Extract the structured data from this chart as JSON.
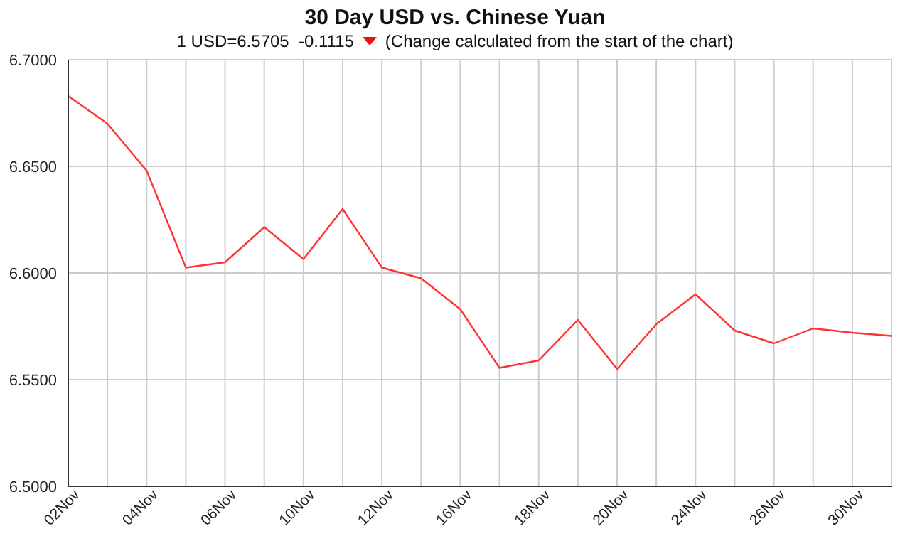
{
  "chart_data": {
    "type": "line",
    "title": "30 Day USD vs. Chinese Yuan",
    "subtitle": "1 USD=6.5705  -0.1115",
    "annotations": [
      "(Change calculated from the start of the chart)"
    ],
    "categories": [
      "02Nov",
      null,
      "04Nov",
      null,
      "06Nov",
      null,
      "10Nov",
      null,
      "12Nov",
      null,
      "16Nov",
      null,
      "18Nov",
      null,
      "20Nov",
      null,
      "24Nov",
      null,
      "26Nov",
      null,
      "30Nov",
      null
    ],
    "series": [
      {
        "color": "#ff3333",
        "values": [
          6.683,
          6.67,
          6.648,
          6.6025,
          6.605,
          6.6215,
          6.6065,
          6.63,
          6.6025,
          6.5975,
          6.583,
          6.5555,
          6.559,
          6.578,
          6.555,
          6.576,
          6.59,
          6.573,
          6.567,
          6.574,
          6.572,
          6.5705
        ]
      }
    ],
    "ylim": [
      6.5,
      6.7
    ],
    "yticks": [
      {
        "value": 6.5,
        "label": "6.5000"
      },
      {
        "value": 6.55,
        "label": "6.5500"
      },
      {
        "value": 6.6,
        "label": "6.6000"
      },
      {
        "value": 6.65,
        "label": "6.6500"
      },
      {
        "value": 6.7,
        "label": "6.7000"
      }
    ],
    "grid": true,
    "marker": "none",
    "line_style": "solid"
  }
}
